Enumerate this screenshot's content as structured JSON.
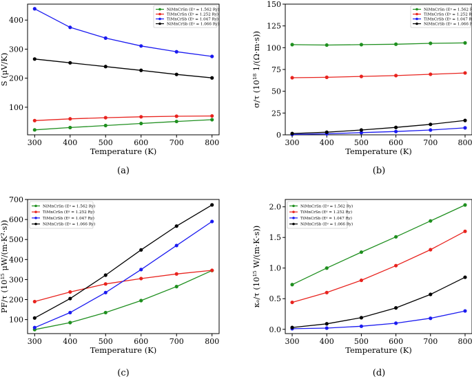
{
  "figure": {
    "panels": [
      {
        "caption": "(a)",
        "chart_data": {
          "type": "line",
          "x": [
            300,
            400,
            500,
            600,
            700,
            800
          ],
          "xlabel": "Temperature (K)",
          "ylabel": "S (μV/K)",
          "xlim": [
            280,
            820
          ],
          "ylim": [
            5,
            455
          ],
          "xticks": [
            "300",
            "400",
            "500",
            "600",
            "700",
            "800"
          ],
          "yticks": [
            100,
            200,
            300,
            400
          ],
          "legend": "top-right",
          "series": [
            {
              "name": "NiMnCrSn (Eᵍ = 1.562 Ry)",
              "color": "#1f8f1f",
              "values": [
                22,
                30,
                37,
                44,
                51,
                57
              ]
            },
            {
              "name": "TiMnCrSn (Eᵍ = 1.252 Ry)",
              "color": "#e8231e",
              "values": [
                54,
                60,
                64,
                67,
                69,
                70
              ]
            },
            {
              "name": "TiMnCrSb (Eᵍ = 1.047 Ry)",
              "color": "#1a1af0",
              "values": [
                439,
                375,
                338,
                311,
                291,
                275
              ]
            },
            {
              "name": "NiMnCrSb (Eᵍ = 1.066 Ry)",
              "color": "#000000",
              "values": [
                266,
                253,
                240,
                227,
                213,
                201
              ]
            }
          ]
        }
      },
      {
        "caption": "(b)",
        "chart_data": {
          "type": "line",
          "x": [
            300,
            400,
            500,
            600,
            700,
            800
          ],
          "xlabel": "Temperature (K)",
          "ylabel": "σ/τ (10¹⁸ 1/(Ω·m·s))",
          "xlim": [
            280,
            820
          ],
          "ylim": [
            0,
            150
          ],
          "xticks": [
            "300",
            "400",
            "500",
            "600",
            "700",
            "800"
          ],
          "yticks": [
            0,
            25,
            50,
            75,
            100,
            125,
            150
          ],
          "legend": "top-right",
          "series": [
            {
              "name": "NiMnCrSn (Eᵍ = 1.562 Ry)",
              "color": "#1f8f1f",
              "values": [
                103.5,
                103,
                103.5,
                104,
                105,
                105.5
              ]
            },
            {
              "name": "TiMnCrSn (Eᵍ = 1.252 Ry)",
              "color": "#e8231e",
              "values": [
                65.5,
                66,
                67,
                68,
                69.5,
                71
              ]
            },
            {
              "name": "TiMnCrSb (Eᵍ = 1.047 Ry)",
              "color": "#1a1af0",
              "values": [
                0.5,
                1.2,
                2.5,
                3.8,
                5.5,
                8
              ]
            },
            {
              "name": "NiMnCrSb (Eᵍ = 1.066 Ry)",
              "color": "#000000",
              "values": [
                1.5,
                3,
                5.5,
                8.5,
                12,
                16.5
              ]
            }
          ]
        }
      },
      {
        "caption": "(c)",
        "chart_data": {
          "type": "line",
          "x": [
            300,
            400,
            500,
            600,
            700,
            800
          ],
          "xlabel": "Temperature (K)",
          "ylabel": "PF/τ (10¹⁵ μW/(m·K²·s))",
          "xlim": [
            280,
            820
          ],
          "ylim": [
            30,
            700
          ],
          "xticks": [
            "300",
            "400",
            "500",
            "600",
            "700",
            "800"
          ],
          "yticks": [
            100,
            200,
            300,
            400,
            500,
            600,
            700
          ],
          "legend": "top-left",
          "series": [
            {
              "name": "NiMnCrSn (Eᵍ = 1.562 Ry)",
              "color": "#1f8f1f",
              "values": [
                50,
                85,
                135,
                195,
                265,
                345
              ]
            },
            {
              "name": "TiMnCrSn (Eᵍ = 1.252 Ry)",
              "color": "#e8231e",
              "values": [
                190,
                238,
                278,
                305,
                328,
                346
              ]
            },
            {
              "name": "TiMnCrSb (Eᵍ = 1.047 Ry)",
              "color": "#1a1af0",
              "values": [
                60,
                135,
                235,
                350,
                470,
                590
              ]
            },
            {
              "name": "NiMnCrSb (Eᵍ = 1.066 Ry)",
              "color": "#000000",
              "values": [
                108,
                205,
                322,
                448,
                567,
                673
              ]
            }
          ]
        }
      },
      {
        "caption": "(d)",
        "chart_data": {
          "type": "line",
          "x": [
            300,
            400,
            500,
            600,
            700,
            800
          ],
          "xlabel": "Temperature (K)",
          "ylabel": "κₑ/τ (10¹⁵ W/(m·K·s))",
          "xlim": [
            280,
            820
          ],
          "ylim": [
            -0.07,
            2.12
          ],
          "xticks": [
            "300",
            "400",
            "500",
            "600",
            "700",
            "800"
          ],
          "yticks": [
            "0.0",
            "0.5",
            "1.0",
            "1.5",
            "2.0"
          ],
          "legend": "top-left",
          "series": [
            {
              "name": "NiMnCrSn (Eᵍ = 1.562 Ry)",
              "color": "#1f8f1f",
              "values": [
                0.73,
                1.0,
                1.26,
                1.51,
                1.77,
                2.03
              ]
            },
            {
              "name": "TiMnCrSn (Eᵍ = 1.252 Ry)",
              "color": "#e8231e",
              "values": [
                0.44,
                0.6,
                0.8,
                1.04,
                1.3,
                1.6
              ]
            },
            {
              "name": "TiMnCrSb (Eᵍ = 1.047 Ry)",
              "color": "#1a1af0",
              "values": [
                0.01,
                0.02,
                0.05,
                0.1,
                0.18,
                0.3
              ]
            },
            {
              "name": "NiMnCrSb (Eᵍ = 1.066 Ry)",
              "color": "#000000",
              "values": [
                0.03,
                0.09,
                0.19,
                0.35,
                0.57,
                0.85
              ]
            }
          ]
        }
      }
    ]
  }
}
